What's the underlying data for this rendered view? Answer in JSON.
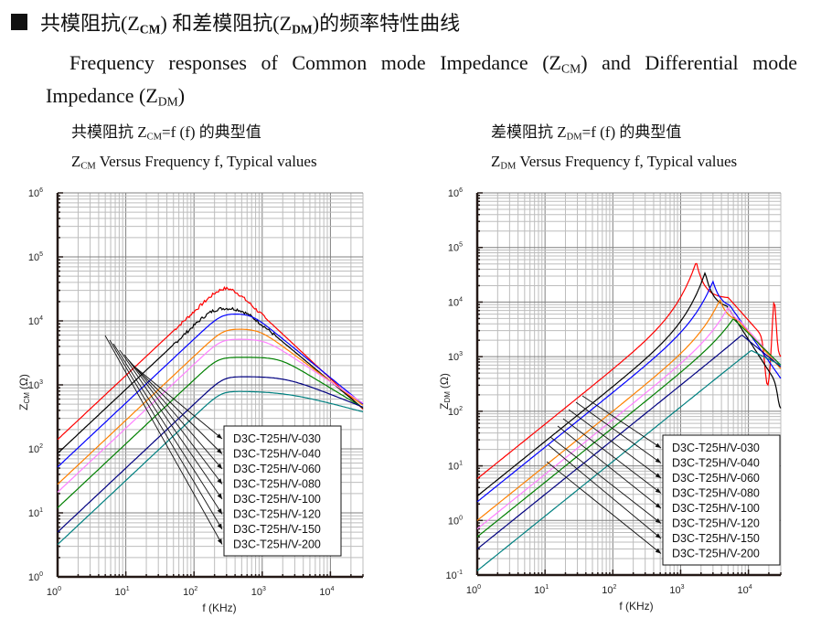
{
  "heading": {
    "cn_prefix": "共模阻抗(Z",
    "cm_sub": "CM",
    "cn_middle": ") 和差模阻抗(Z",
    "dm_sub": "DM",
    "cn_suffix": ")的频率特性曲线"
  },
  "description": {
    "line_prefix": "Frequency responses of Common mode Impedance (Z",
    "cm_sub": "CM",
    "line_middle": ") and Differential mode Impedance (Z",
    "dm_sub": "DM",
    "line_suffix": ")"
  },
  "chart_data": [
    {
      "type": "line",
      "title_cn": "共模阻抗 Z",
      "title_cn_sub": "CM",
      "title_cn_suffix": "=f (f)  的典型值",
      "title_en_prefix": "Z",
      "title_en_sub": "CM",
      "title_en_suffix": " Versus Frequency f, Typical values",
      "xlabel": "f (KHz)",
      "ylabel": "Z",
      "ylabel_sub": "CM",
      "ylabel_unit": "(Ω)",
      "xscale": "log",
      "yscale": "log",
      "xlim": [
        1,
        30000
      ],
      "ylim": [
        1,
        1000000
      ],
      "xticks": [
        "10^0",
        "10^1",
        "10^2",
        "10^3",
        "10^4"
      ],
      "yticks": [
        "10^0",
        "10^1",
        "10^2",
        "10^3",
        "10^4",
        "10^5",
        "10^6"
      ],
      "grid": true,
      "legend_placement": "bottom-right",
      "series": [
        {
          "name": "D3C-T25H/V-030",
          "color": "#ff0000",
          "z_at_1kHz": 140,
          "peak_freq_kHz": 350,
          "peak_z": 35000,
          "z_at_30MHz": 420,
          "noisy": true
        },
        {
          "name": "D3C-T25H/V-040",
          "color": "#000000",
          "z_at_1kHz": 85,
          "peak_freq_kHz": 500,
          "peak_z": 16000,
          "z_at_30MHz": 430,
          "noisy": true
        },
        {
          "name": "D3C-T25H/V-060",
          "color": "#0000ff",
          "z_at_1kHz": 52,
          "peak_freq_kHz": 700,
          "peak_z": 13000,
          "z_at_30MHz": 500
        },
        {
          "name": "D3C-T25H/V-080",
          "color": "#ff8000",
          "z_at_1kHz": 28,
          "peak_freq_kHz": 900,
          "peak_z": 7500,
          "z_at_30MHz": 480
        },
        {
          "name": "D3C-T25H/V-100",
          "color": "#ff80ff",
          "z_at_1kHz": 21,
          "peak_freq_kHz": 1100,
          "peak_z": 5200,
          "z_at_30MHz": 520
        },
        {
          "name": "D3C-T25H/V-120",
          "color": "#008000",
          "z_at_1kHz": 12,
          "peak_freq_kHz": 1800,
          "peak_z": 2700,
          "z_at_30MHz": 440
        },
        {
          "name": "D3C-T25H/V-150",
          "color": "#000080",
          "z_at_1kHz": 5,
          "peak_freq_kHz": 2200,
          "peak_z": 1350,
          "z_at_30MHz": 450
        },
        {
          "name": "D3C-T25H/V-200",
          "color": "#008080",
          "z_at_1kHz": 3.2,
          "peak_freq_kHz": 2200,
          "peak_z": 800,
          "z_at_30MHz": 380
        }
      ]
    },
    {
      "type": "line",
      "title_cn": "差模阻抗 Z",
      "title_cn_sub": "DM",
      "title_cn_suffix": "=f (f)  的典型值",
      "title_en_prefix": "Z",
      "title_en_sub": "DM",
      "title_en_suffix": " Versus Frequency f, Typical values",
      "xlabel": "f (KHz)",
      "ylabel": "Z",
      "ylabel_sub": "DM",
      "ylabel_unit": "(Ω)",
      "xscale": "log",
      "yscale": "log",
      "xlim": [
        1,
        30000
      ],
      "ylim": [
        0.1,
        1000000
      ],
      "xticks": [
        "10^0",
        "10^1",
        "10^2",
        "10^3",
        "10^4"
      ],
      "yticks": [
        "10^-1",
        "10^0",
        "10^1",
        "10^2",
        "10^3",
        "10^4",
        "10^5",
        "10^6"
      ],
      "grid": true,
      "legend_placement": "bottom-right",
      "series": [
        {
          "name": "D3C-T25H/V-030",
          "color": "#ff0000",
          "z_at_1kHz": 5.8,
          "peak_freq_kHz": 1700,
          "peak_z": 55000,
          "z_at_30MHz": 1000
        },
        {
          "name": "D3C-T25H/V-040",
          "color": "#000000",
          "z_at_1kHz": 2.8,
          "peak_freq_kHz": 2300,
          "peak_z": 35000,
          "z_at_30MHz": 250
        },
        {
          "name": "D3C-T25H/V-060",
          "color": "#0000ff",
          "z_at_1kHz": 2.2,
          "peak_freq_kHz": 3000,
          "peak_z": 24000,
          "z_at_30MHz": 400
        },
        {
          "name": "D3C-T25H/V-080",
          "color": "#ff8000",
          "z_at_1kHz": 1.0,
          "peak_freq_kHz": 3800,
          "peak_z": 11000,
          "z_at_30MHz": 600
        },
        {
          "name": "D3C-T25H/V-100",
          "color": "#ff80ff",
          "z_at_1kHz": 0.7,
          "peak_freq_kHz": 5000,
          "peak_z": 8000,
          "z_at_30MHz": 650
        },
        {
          "name": "D3C-T25H/V-120",
          "color": "#008000",
          "z_at_1kHz": 0.5,
          "peak_freq_kHz": 6000,
          "peak_z": 5000,
          "z_at_30MHz": 700
        },
        {
          "name": "D3C-T25H/V-150",
          "color": "#000080",
          "z_at_1kHz": 0.3,
          "peak_freq_kHz": 8000,
          "peak_z": 2500,
          "z_at_30MHz": 650
        },
        {
          "name": "D3C-T25H/V-200",
          "color": "#008080",
          "z_at_1kHz": 0.12,
          "peak_freq_kHz": 11000,
          "peak_z": 1300,
          "z_at_30MHz": 700
        }
      ]
    }
  ]
}
